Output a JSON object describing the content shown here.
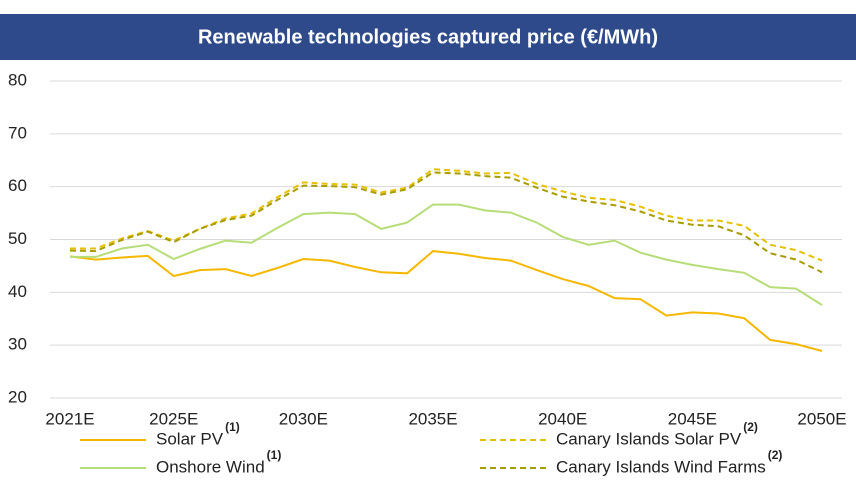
{
  "chart_data": {
    "type": "line",
    "title": "Renewable technologies captured price (€/MWh)",
    "categories": [
      "2021E",
      null,
      null,
      null,
      "2025E",
      null,
      null,
      null,
      null,
      "2030E",
      null,
      null,
      null,
      null,
      "2035E",
      null,
      null,
      null,
      null,
      "2040E",
      null,
      null,
      null,
      null,
      "2045E",
      null,
      null,
      null,
      null,
      "2050E"
    ],
    "series": [
      {
        "name": "Solar PV",
        "note": "(1)",
        "color": "#f5b800",
        "dashed": false,
        "values": [
          46.8,
          46.2,
          46.6,
          46.9,
          43.1,
          44.2,
          44.4,
          43.1,
          44.6,
          46.3,
          46.0,
          44.8,
          43.8,
          43.6,
          47.8,
          47.3,
          46.5,
          46.0,
          44.2,
          42.5,
          41.2,
          38.9,
          38.7,
          35.6,
          36.2,
          36.0,
          35.1,
          31.0,
          30.2,
          28.9
        ]
      },
      {
        "name": "Onshore Wind",
        "note": "(1)",
        "color": "#b7dd79",
        "dashed": false,
        "values": [
          46.7,
          46.7,
          48.3,
          49.0,
          46.3,
          48.2,
          49.8,
          49.4,
          52.2,
          54.8,
          55.1,
          54.8,
          52.0,
          53.2,
          56.6,
          56.6,
          55.5,
          55.1,
          53.2,
          50.5,
          49.0,
          49.8,
          47.5,
          46.2,
          45.2,
          44.4,
          43.7,
          41.0,
          40.7,
          37.6
        ]
      },
      {
        "name": "Canary Islands Solar PV",
        "note": "(2)",
        "color": "#e6c000",
        "dashed": true,
        "values": [
          48.3,
          48.3,
          50.2,
          51.6,
          49.8,
          52.0,
          54.0,
          54.9,
          58.0,
          60.8,
          60.5,
          60.4,
          58.9,
          59.8,
          63.3,
          63.0,
          62.5,
          62.6,
          60.5,
          59.1,
          57.9,
          57.5,
          56.2,
          54.5,
          53.6,
          53.6,
          52.6,
          49.0,
          48.0,
          46.0
        ]
      },
      {
        "name": "Canary Islands Wind Farms",
        "note": "(2)",
        "color": "#a89c00",
        "dashed": true,
        "values": [
          47.9,
          47.8,
          49.9,
          51.5,
          49.5,
          52.0,
          53.7,
          54.5,
          57.5,
          60.2,
          60.1,
          59.9,
          58.5,
          59.5,
          62.7,
          62.5,
          62.0,
          61.7,
          59.8,
          58.1,
          57.2,
          56.5,
          55.3,
          53.6,
          52.8,
          52.5,
          50.8,
          47.4,
          46.2,
          43.8
        ]
      }
    ],
    "ylim": [
      20,
      80
    ],
    "yticks": [
      20,
      30,
      40,
      50,
      60,
      70,
      80
    ],
    "grid": true
  }
}
